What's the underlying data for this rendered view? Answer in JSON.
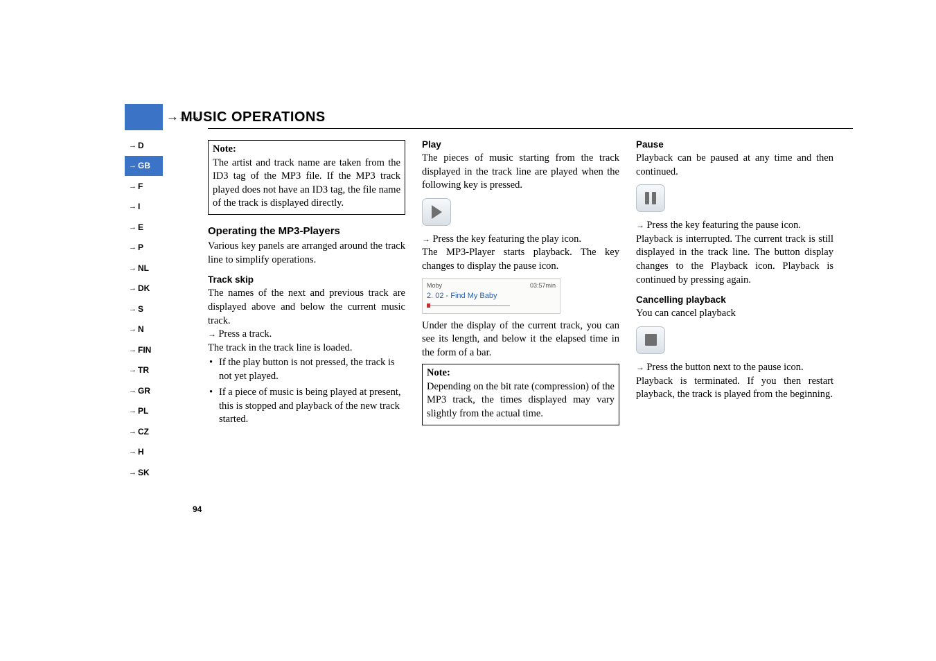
{
  "header": {
    "arrows": "→→→",
    "title": "MUSIC OPERATIONS"
  },
  "tabs": [
    "D",
    "GB",
    "F",
    "I",
    "E",
    "P",
    "NL",
    "DK",
    "S",
    "N",
    "FIN",
    "TR",
    "GR",
    "PL",
    "CZ",
    "H",
    "SK"
  ],
  "active_tab_index": 1,
  "col1": {
    "note_heading": "Note:",
    "note_body": "The artist and track name are taken from the ID3 tag of the MP3 file. If the MP3 track played does not have an ID3 tag, the file name of the track is displayed directly.",
    "operating_heading": "Operating the MP3-Players",
    "operating_body": "Various key panels are arranged around the track line to simplify operations.",
    "trackskip_heading": "Track skip",
    "trackskip_body1": "The names of the next and previous track are displayed above and below the current music track.",
    "trackskip_press": "Press a track.",
    "trackskip_body2": "The track in the track line is loaded.",
    "bullet1": "If the play button is not pressed, the track is not yet played.",
    "bullet2": "If a piece of music is being played at present, this is stopped and playback of the new track started."
  },
  "col2": {
    "play_heading": "Play",
    "play_body1": "The pieces of music starting from the track displayed in the track line are played when the following key is pressed.",
    "play_press": "Press the key featuring the play icon.",
    "play_body2": "The MP3-Player starts playback. The key changes to display the pause icon.",
    "mini_artist": "Moby",
    "mini_time": "03:57min",
    "mini_track": "2. 02 - Find My Baby",
    "play_body3": "Under the display of the current track, you can see its length, and below it the elapsed time in the form of a bar.",
    "note_heading": "Note:",
    "note_body": "Depending on the bit rate (compression) of the MP3 track, the times displayed may vary slightly from the actual time."
  },
  "col3": {
    "pause_heading": "Pause",
    "pause_body1": "Playback can be paused at any time and then continued.",
    "pause_press": "Press the key featuring the pause icon.",
    "pause_body2": "Playback is interrupted. The current track is still displayed in the track line. The button display changes to the Playback icon. Playback is continued by pressing again.",
    "cancel_heading": "Cancelling playback",
    "cancel_body1": "You can cancel playback",
    "cancel_press": "Press the button next to the pause icon.",
    "cancel_body2": "Playback is terminated. If you then restart playback, the track is played from the beginning."
  },
  "page_number": "94",
  "colors": {
    "accent": "#3b74c7",
    "link": "#2a5db0"
  }
}
